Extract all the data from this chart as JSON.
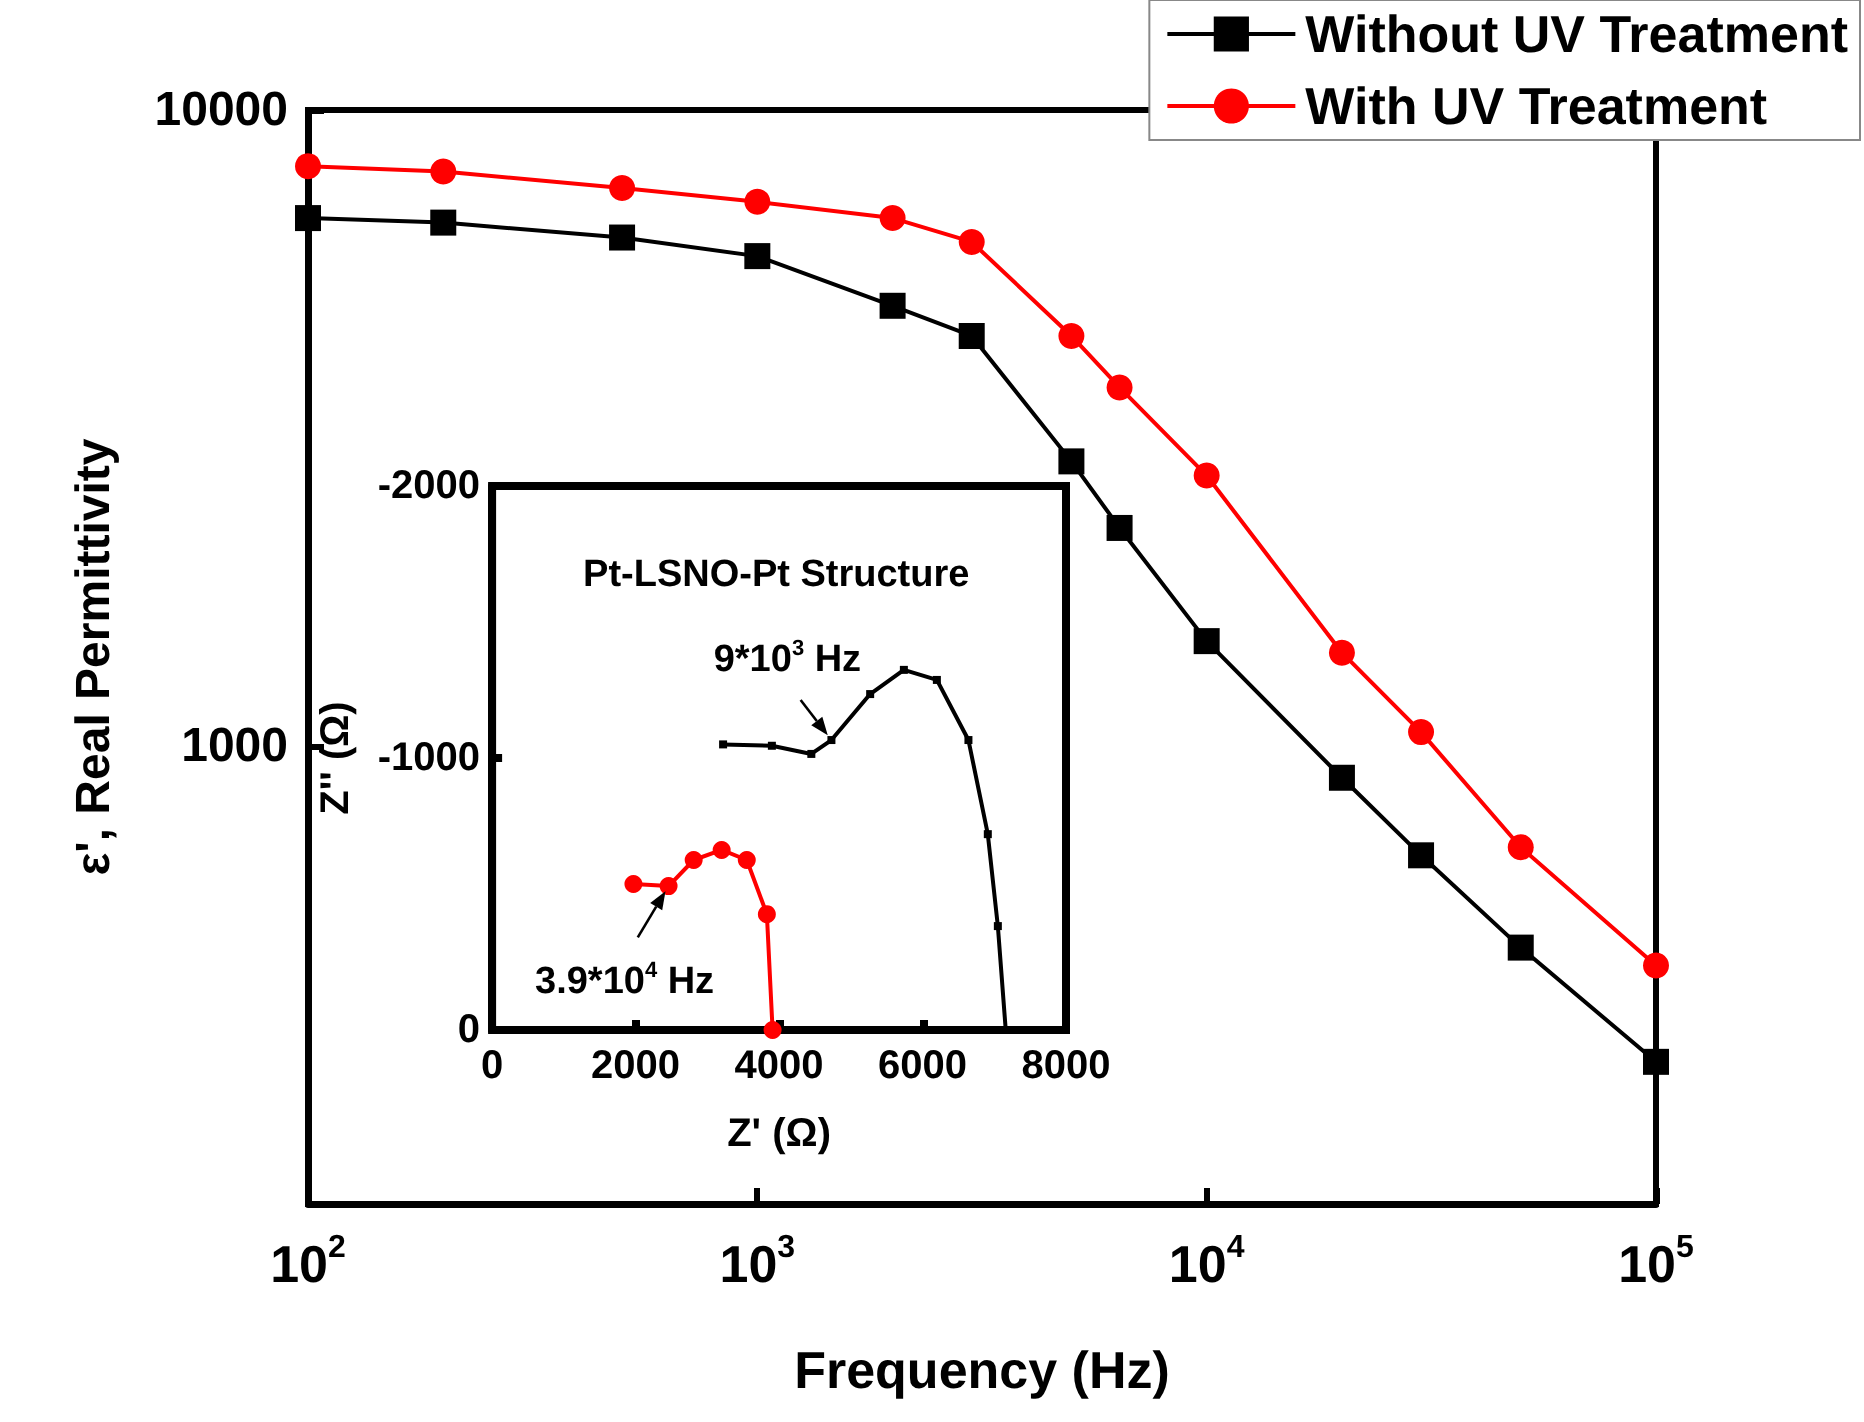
{
  "chart_data": [
    {
      "type": "line",
      "xlabel": "Frequency (Hz)",
      "ylabel": "ε', Real Permittivity",
      "log": "xy",
      "xlim": [
        100,
        100000
      ],
      "ylim": [
        190,
        10000
      ],
      "xticks": [
        {
          "value": 100,
          "label": "10$^{2}$"
        },
        {
          "value": 1000,
          "label": "10$^{3}$"
        },
        {
          "value": 10000,
          "label": "10$^{4}$"
        },
        {
          "value": 100000,
          "label": "10$^{5}$"
        }
      ],
      "yticks": [
        1000,
        10000
      ],
      "legend": "top right",
      "x": [
        100,
        200,
        500,
        1000,
        2000,
        3000,
        5000,
        6400,
        10000,
        20000,
        30000,
        50000,
        100000
      ],
      "series": [
        {
          "name": "Without UV Treatment",
          "color": "#000000",
          "marker": "square",
          "values": [
            6760,
            6650,
            6300,
            5890,
            4920,
            4410,
            2800,
            2200,
            1460,
            890,
            672,
            481,
            318
          ]
        },
        {
          "name": "With UV Treatment",
          "color": "#ff0000",
          "marker": "circle",
          "values": [
            8160,
            8000,
            7540,
            7170,
            6760,
            6200,
            4410,
            3660,
            2660,
            1400,
            1050,
            692,
            451
          ]
        }
      ]
    },
    {
      "type": "line",
      "xlabel": "Z' (Ω)",
      "ylabel": "Z'' (Ω)",
      "xlim": [
        0,
        8000
      ],
      "ylim": [
        0,
        -2000
      ],
      "xticks": [
        0,
        2000,
        4000,
        6000,
        8000
      ],
      "yticks": [
        0,
        -1000,
        -2000
      ],
      "annotations": [
        "Pt-LSNO-Pt Structure",
        {
          "text": "9*10$^{3}$ Hz",
          "x": 4730,
          "y": -1066
        },
        {
          "text": "3.9*10$^{4}$ Hz",
          "x": 2460,
          "y": -529
        }
      ],
      "series": [
        {
          "color": "#000000",
          "marker": "square",
          "x": [
            3220,
            3900,
            4450,
            4730,
            5270,
            5740,
            6200,
            6640,
            6910,
            7050,
            7160
          ],
          "values": [
            -1050,
            -1045,
            -1015,
            -1066,
            -1235,
            -1324,
            -1287,
            -1066,
            -720,
            -382,
            0
          ]
        },
        {
          "color": "#ff0000",
          "marker": "circle",
          "x": [
            1970,
            2460,
            2810,
            3200,
            3550,
            3830,
            3910
          ],
          "values": [
            -537,
            -529,
            -625,
            -662,
            -625,
            -426,
            0
          ]
        }
      ]
    }
  ]
}
